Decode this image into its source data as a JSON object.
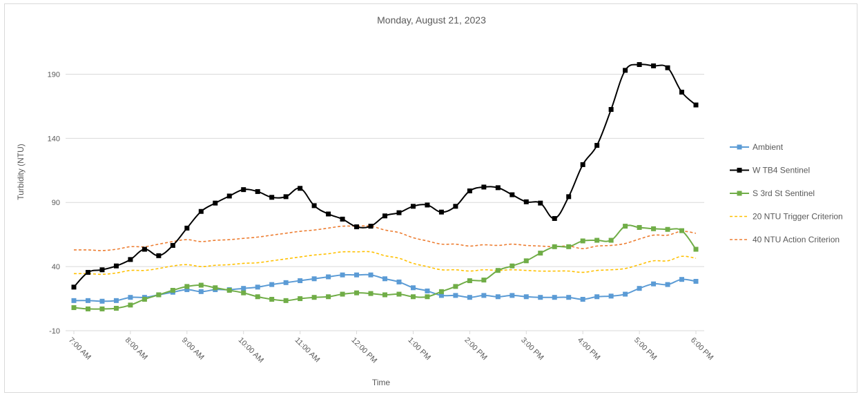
{
  "chart_data": {
    "type": "line",
    "title": "Monday, August 21, 2023",
    "xlabel": "Time",
    "ylabel": "Turbidity (NTU)",
    "ylim": [
      -10,
      215
    ],
    "yticks": [
      -10,
      40,
      90,
      140,
      190
    ],
    "xticks": [
      "7:00 AM",
      "8:00 AM",
      "9:00 AM",
      "10:00 AM",
      "11:00 AM",
      "12:00 PM",
      "1:00 PM",
      "2:00 PM",
      "3:00 PM",
      "4:00 PM",
      "5:00 PM",
      "6:00 PM"
    ],
    "x_hours": [
      7.0,
      7.25,
      7.5,
      7.75,
      8.0,
      8.25,
      8.5,
      8.75,
      9.0,
      9.25,
      9.5,
      9.75,
      10.0,
      10.25,
      10.5,
      10.75,
      11.0,
      11.25,
      11.5,
      11.75,
      12.0,
      12.25,
      12.5,
      12.75,
      13.0,
      13.25,
      13.5,
      13.75,
      14.0,
      14.25,
      14.5,
      14.75,
      15.0,
      15.25,
      15.5,
      15.75,
      16.0,
      16.25,
      16.5,
      16.75,
      17.0,
      17.25,
      17.5,
      17.75,
      18.0
    ],
    "legend_position": "right",
    "gridlines": "horizontal",
    "series": [
      {
        "name": "Ambient",
        "color": "#5b9bd5",
        "style": "solid-square",
        "values": [
          13.5,
          13.5,
          13,
          13.5,
          16,
          16,
          18,
          20,
          22,
          20.5,
          22,
          22,
          23,
          24,
          26,
          27.5,
          29,
          30.5,
          32,
          33.5,
          33.5,
          33.5,
          30.5,
          28,
          23.5,
          21,
          17.5,
          17.5,
          16,
          17.5,
          16.5,
          17.5,
          16.5,
          16,
          16,
          16,
          14.5,
          16.5,
          17,
          18.5,
          23,
          26.5,
          26,
          30,
          28.5
        ]
      },
      {
        "name": "W TB4 Sentinel",
        "color": "#000000",
        "style": "solid-square",
        "values": [
          24,
          35.5,
          37.5,
          40.5,
          45.5,
          53.5,
          48.5,
          56.5,
          70,
          83,
          89.5,
          95,
          100,
          98.5,
          94,
          94.5,
          101,
          87.5,
          81,
          77,
          71,
          71.5,
          79.5,
          82,
          87,
          88,
          82.5,
          87,
          99,
          102,
          101.5,
          96,
          90.5,
          89.5,
          77.5,
          94.5,
          119.5,
          134.5,
          162.5,
          193,
          197.5,
          196.5,
          195,
          176,
          166
        ]
      },
      {
        "name": "S 3rd St Sentinel",
        "color": "#70ad47",
        "style": "solid-square",
        "values": [
          8,
          7,
          7,
          7.5,
          10,
          14.5,
          18,
          21.5,
          24.5,
          25.5,
          23.5,
          21.5,
          19.5,
          16.5,
          14.5,
          13.5,
          15,
          16,
          16.5,
          18.5,
          19.5,
          19,
          18,
          18.5,
          16.5,
          16.5,
          20.5,
          24.5,
          29,
          29.5,
          37,
          40.5,
          44.5,
          50.5,
          55.5,
          55.5,
          60,
          60.5,
          60.5,
          71.5,
          70.5,
          69.5,
          69,
          68,
          53.5
        ]
      },
      {
        "name": "20 NTU Trigger Criterion",
        "color": "#ffc000",
        "style": "dashed",
        "values": [
          34.5,
          34.5,
          34,
          35,
          37,
          37,
          38.5,
          40.5,
          41.5,
          40,
          41,
          41.5,
          42.5,
          43,
          44.5,
          46,
          47.5,
          49,
          50,
          51.5,
          51.5,
          51.5,
          48.5,
          46.5,
          42.5,
          40,
          37.5,
          37.5,
          36.5,
          37.5,
          37,
          37.5,
          37,
          36.5,
          36.5,
          36.5,
          35.5,
          37,
          37.5,
          38.5,
          41.5,
          44.5,
          44.5,
          48,
          46.5
        ]
      },
      {
        "name": "40 NTU Action Criterion",
        "color": "#ed7d31",
        "style": "dashed",
        "values": [
          53,
          53,
          52.5,
          53.5,
          55.5,
          55.5,
          57.5,
          59.5,
          61,
          59.5,
          60.5,
          61,
          62,
          63,
          64.5,
          66,
          67.5,
          68.5,
          70,
          71.5,
          71.5,
          71.5,
          68.5,
          66.5,
          62.5,
          60,
          57.5,
          57.5,
          56,
          57,
          56.5,
          57.5,
          56.5,
          56,
          55.5,
          56,
          54,
          56,
          56.5,
          58,
          61.5,
          64.5,
          64.5,
          67.5,
          66
        ]
      }
    ]
  }
}
